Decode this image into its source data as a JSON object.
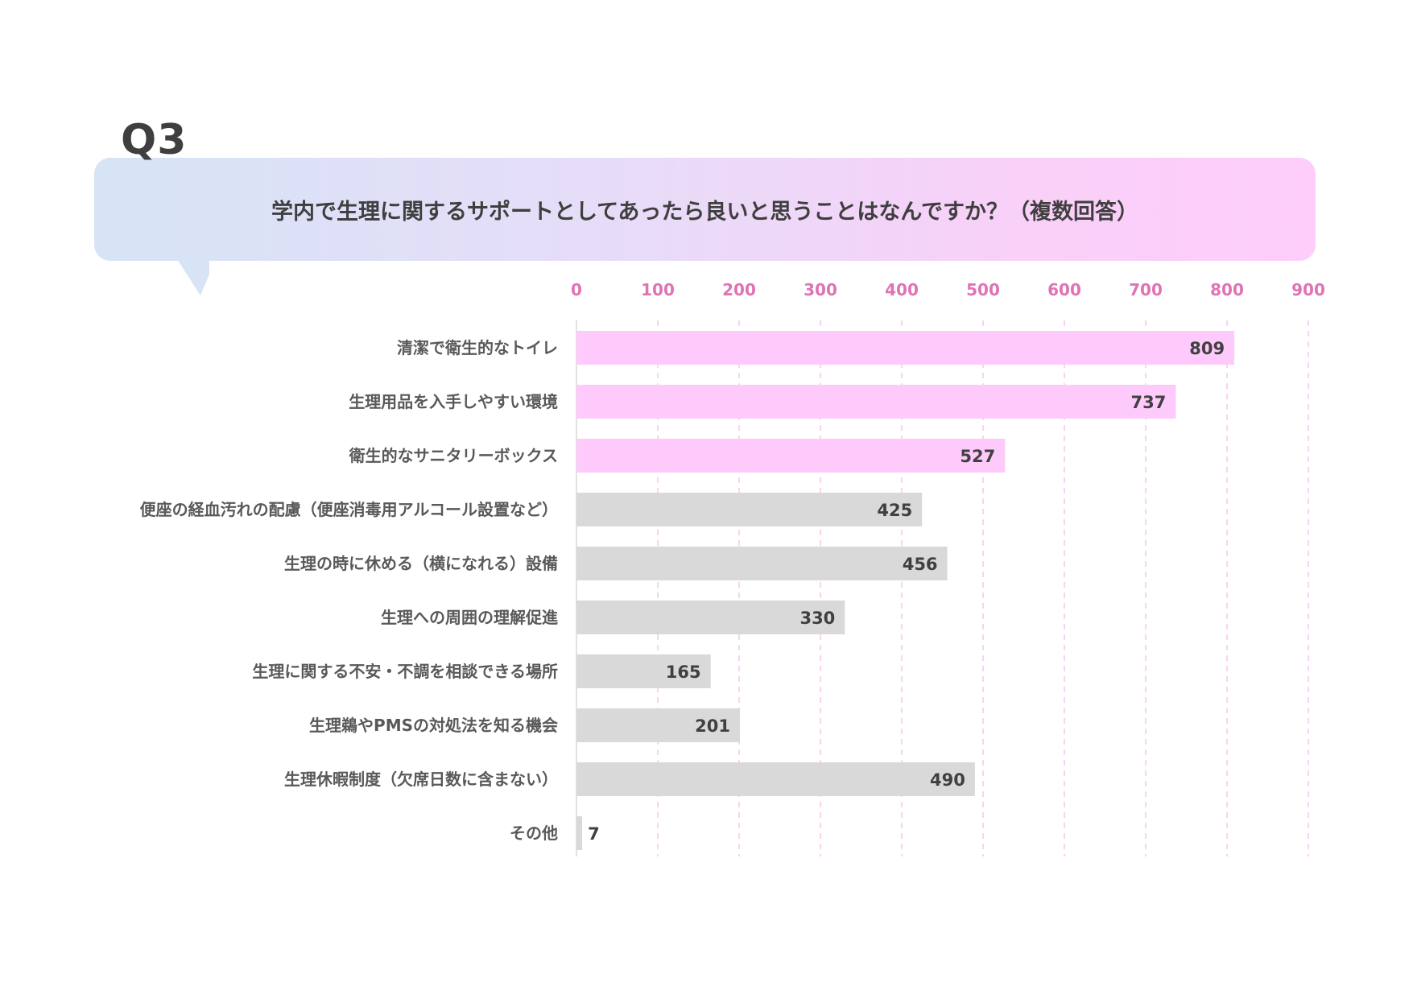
{
  "header": {
    "q_label": "Q3",
    "question": "学内で生理に関するサポートとしてあったら良いと思うことはなんですか？（複数回答）"
  },
  "colors": {
    "highlight_bar": "#fec9fb",
    "regular_bar": "#d9d9d9",
    "axis_tick_text": "#e072b6",
    "grid_line": "#f6c6ec",
    "label_text": "#595959",
    "value_text": "#404040"
  },
  "chart_data": {
    "type": "bar",
    "orientation": "horizontal",
    "title": "",
    "xlabel": "",
    "ylabel": "",
    "xlim": [
      0,
      900
    ],
    "x_ticks": [
      0,
      100,
      200,
      300,
      400,
      500,
      600,
      700,
      800,
      900
    ],
    "x_tick_labels": [
      "0",
      "100",
      "200",
      "300",
      "400",
      "500",
      "600",
      "700",
      "800",
      "900"
    ],
    "grid": "vertical dashed",
    "tick_labels_position": "top",
    "categories": [
      "清潔で衛生的なトイレ",
      "生理用品を入手しやすい環境",
      "衛生的なサニタリーボックス",
      "便座の経血汚れの配慮（便座消毒用アルコール設置など）",
      "生理の時に休める（横になれる）設備",
      "生理への周囲の理解促進",
      "生理に関する不安・不調を相談できる場所",
      "生理鵜やPMSの対処法を知る機会",
      "生理休暇制度（欠席日数に含まない）",
      "その他"
    ],
    "values": [
      809,
      737,
      527,
      425,
      456,
      330,
      165,
      201,
      490,
      7
    ],
    "value_labels": [
      "809",
      "737",
      "527",
      "425",
      "456",
      "330",
      "165",
      "201",
      "490",
      "7"
    ],
    "highlighted": [
      true,
      true,
      true,
      false,
      false,
      false,
      false,
      false,
      false,
      false
    ]
  }
}
